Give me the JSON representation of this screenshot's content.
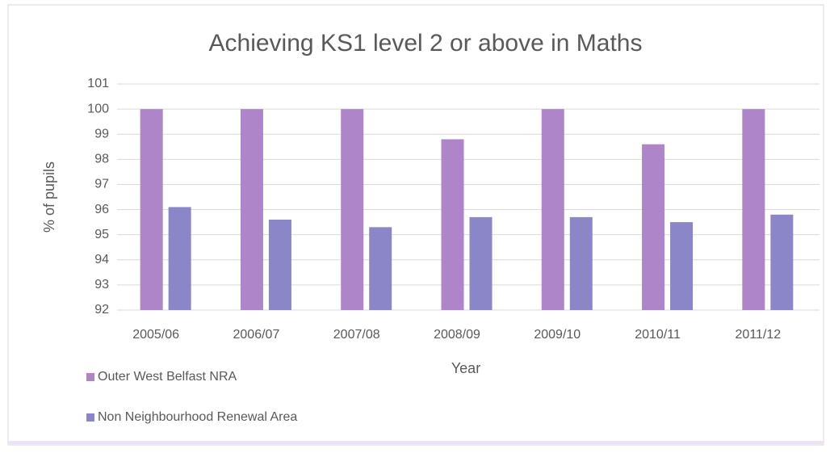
{
  "chart_data": {
    "type": "bar",
    "title": "Achieving KS1 level 2 or above in Maths",
    "x_label": "Year",
    "y_label": "% of pupils",
    "categories": [
      "2005/06",
      "2006/07",
      "2007/08",
      "2008/09",
      "2009/10",
      "2010/11",
      "2011/12"
    ],
    "series": [
      {
        "name": "Outer West Belfast NRA",
        "color": "#ae85c8",
        "values": [
          100,
          100,
          100,
          98.8,
          100,
          98.6,
          100
        ]
      },
      {
        "name": "Non Neighbourhood Renewal Area",
        "color": "#8a86c8",
        "values": [
          96.1,
          95.6,
          95.3,
          95.7,
          95.7,
          95.5,
          95.8
        ]
      }
    ],
    "ylim": [
      92,
      101
    ],
    "yticks": [
      92,
      93,
      94,
      95,
      96,
      97,
      98,
      99,
      100,
      101
    ],
    "grid": true,
    "legend": "bottom-left"
  }
}
